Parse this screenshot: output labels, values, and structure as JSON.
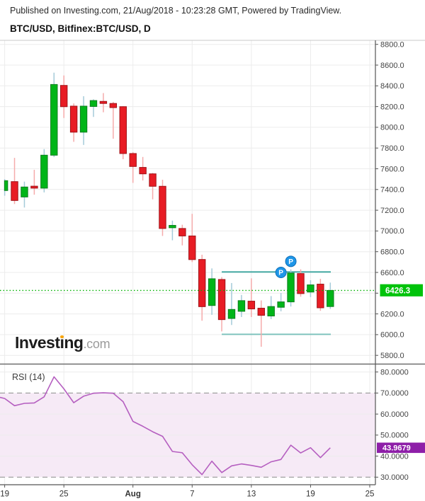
{
  "header": {
    "published_line": "Published on Investing.com, 21/Aug/2018 - 10:23:28 GMT, Powered by TradingView.",
    "symbol_line": "BTC/USD, Bitfinex:BTC/USD, D"
  },
  "watermark": {
    "brand_part1": "Invest",
    "dotless_i": "ı",
    "brand_part2": "ng",
    "tld": ".com"
  },
  "panes": {
    "rsi_title": "RSI (14)"
  },
  "colors": {
    "up_fill": "#00b518",
    "up_border": "#0b7e1e",
    "up_wick": "#a5cbd9",
    "down_fill": "#e81c24",
    "down_border": "#9f1318",
    "down_wick": "#f5abab",
    "grid": "#ececec",
    "axis_line": "#555555",
    "separator": "#6f6f6f",
    "pane_top_border": "#c8c8c8",
    "tick_text": "#444444",
    "time_text": "#333333",
    "price_line": "#00b200",
    "price_label_bg": "#00c30b",
    "price_label_text": "#ffffff",
    "level_line_top": "#3aa49e",
    "level_line_bottom": "#79c0ba",
    "marker_bg": "#1e96e8",
    "marker_border": "#0f6fb8",
    "marker_text": "#ffffff",
    "rsi_line": "#b55fc0",
    "rsi_band_fill": "#f6eaf6",
    "rsi_dashed": "#979797",
    "rsi_label_bg": "#8e1fa8",
    "rsi_label_text": "#ffffff"
  },
  "chart_data": [
    {
      "type": "candlestick",
      "title": "BTC/USD, Bitfinex:BTC/USD, D",
      "symbol": "BTC/USD",
      "exchange": "Bitfinex",
      "interval": "D",
      "grid": true,
      "ylim": [
        5760,
        8840
      ],
      "y_ticks": [
        "8800.0",
        "8600.0",
        "8400.0",
        "8200.0",
        "8000.0",
        "7800.0",
        "7600.0",
        "7400.0",
        "7200.0",
        "7000.0",
        "6800.0",
        "6600.0",
        "6400.0",
        "6200.0",
        "6000.0",
        "5800.0"
      ],
      "x_ticks": [
        {
          "k": 0,
          "label": "19"
        },
        {
          "k": 6,
          "label": "25"
        },
        {
          "k": 13,
          "label": "Aug",
          "bold": true
        },
        {
          "k": 19,
          "label": "7"
        },
        {
          "k": 25,
          "label": "13"
        },
        {
          "k": 31,
          "label": "19"
        },
        {
          "k": 37,
          "label": "25"
        }
      ],
      "dates": [
        "Jul 19",
        "Jul 20",
        "Jul 21",
        "Jul 22",
        "Jul 23",
        "Jul 24",
        "Jul 25",
        "Jul 26",
        "Jul 27",
        "Jul 28",
        "Jul 29",
        "Jul 30",
        "Jul 31",
        "Aug 1",
        "Aug 2",
        "Aug 3",
        "Aug 4",
        "Aug 5",
        "Aug 6",
        "Aug 7",
        "Aug 8",
        "Aug 9",
        "Aug 10",
        "Aug 11",
        "Aug 12",
        "Aug 13",
        "Aug 14",
        "Aug 15",
        "Aug 16",
        "Aug 17",
        "Aug 18",
        "Aug 19",
        "Aug 20",
        "Aug 21"
      ],
      "ohlc": [
        [
          7390,
          7500,
          7340,
          7485
        ],
        [
          7476,
          7705,
          7260,
          7294
        ],
        [
          7328,
          7476,
          7226,
          7424
        ],
        [
          7432,
          7590,
          7350,
          7413
        ],
        [
          7413,
          7790,
          7372,
          7731
        ],
        [
          7731,
          8527,
          7713,
          8413
        ],
        [
          8404,
          8500,
          8090,
          8199
        ],
        [
          8204,
          8230,
          7860,
          7953
        ],
        [
          7953,
          8300,
          7830,
          8204
        ],
        [
          8201,
          8270,
          8100,
          8258
        ],
        [
          8250,
          8330,
          8145,
          8230
        ],
        [
          8230,
          8245,
          7890,
          8190
        ],
        [
          8199,
          8205,
          7692,
          7747
        ],
        [
          7747,
          7760,
          7464,
          7622
        ],
        [
          7613,
          7714,
          7487,
          7551
        ],
        [
          7551,
          7560,
          7305,
          7431
        ],
        [
          7431,
          7494,
          6952,
          7024
        ],
        [
          7031,
          7100,
          6910,
          7054
        ],
        [
          7024,
          7060,
          6861,
          6952
        ],
        [
          6952,
          7165,
          6700,
          6724
        ],
        [
          6725,
          6771,
          6134,
          6270
        ],
        [
          6281,
          6639,
          6191,
          6539
        ],
        [
          6532,
          6555,
          6031,
          6145
        ],
        [
          6156,
          6498,
          6093,
          6243
        ],
        [
          6225,
          6383,
          6170,
          6328
        ],
        [
          6323,
          6543,
          6170,
          6248
        ],
        [
          6255,
          6330,
          5883,
          6186
        ],
        [
          6180,
          6372,
          6150,
          6271
        ],
        [
          6264,
          6402,
          6225,
          6316
        ],
        [
          6316,
          6630,
          6271,
          6594
        ],
        [
          6589,
          6630,
          6366,
          6396
        ],
        [
          6411,
          6525,
          6362,
          6480
        ],
        [
          6487,
          6538,
          6230,
          6259
        ],
        [
          6271,
          6502,
          6248,
          6426.3
        ]
      ],
      "first_body_width": 4.5,
      "last_price": 6426.3,
      "last_price_label": "6426.3",
      "levels": [
        {
          "name": "resistance",
          "price": 6605,
          "from_k": 22,
          "to_k": 33.05
        },
        {
          "name": "support",
          "price": 6003,
          "from_k": 22,
          "to_k": 33.05
        }
      ],
      "markers": [
        {
          "label": "P",
          "k": 28,
          "price": 6600
        },
        {
          "label": "P",
          "k": 29,
          "price": 6707
        }
      ]
    },
    {
      "type": "line",
      "name": "RSI (14)",
      "grid": true,
      "ylim": [
        26.5,
        85.5
      ],
      "y_ticks": [
        "80.0000",
        "70.0000",
        "60.0000",
        "50.0000",
        "40.0000",
        "30.0000"
      ],
      "bands": {
        "upper": 70,
        "lower": 30
      },
      "lead_value": 68.5,
      "values": [
        67.4,
        64.0,
        65.1,
        65.3,
        68.2,
        77.7,
        72.0,
        65.4,
        68.5,
        69.9,
        70.1,
        69.9,
        65.9,
        56.5,
        54.2,
        51.6,
        49.4,
        42.2,
        41.6,
        35.9,
        31.2,
        37.6,
        32.2,
        35.4,
        36.3,
        35.6,
        34.7,
        37.3,
        38.4,
        45.2,
        41.5,
        44.0,
        39.3,
        43.9679
      ],
      "last_value": 43.9679,
      "last_value_label": "43.9679"
    }
  ]
}
